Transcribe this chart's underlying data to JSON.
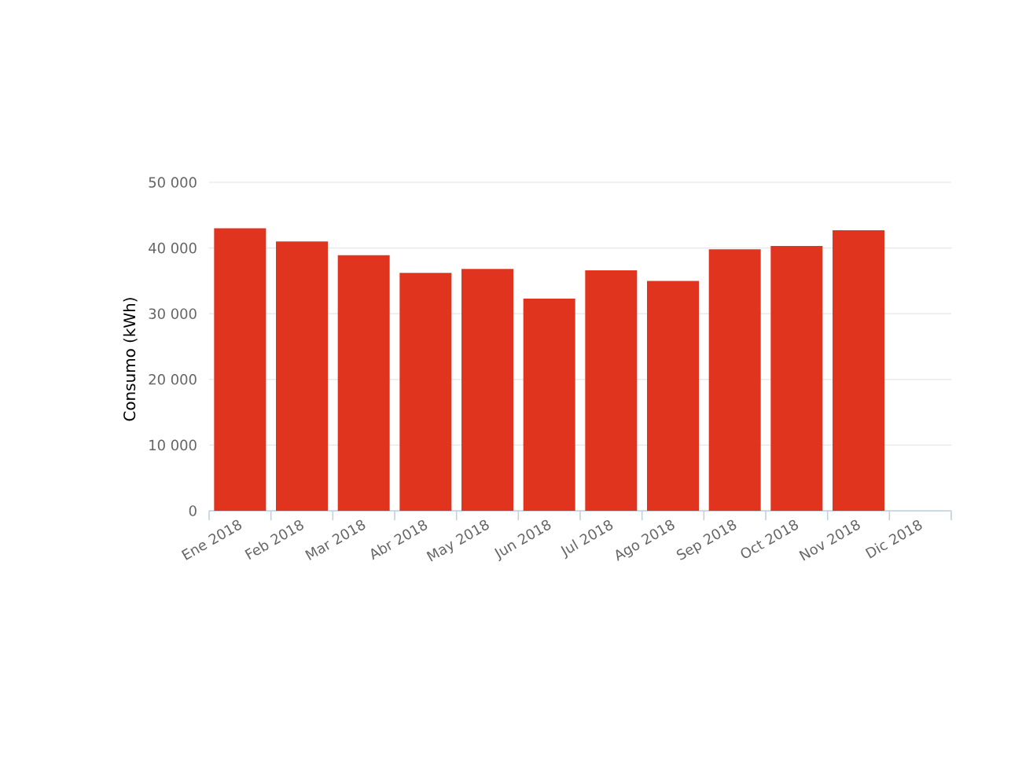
{
  "chart_data": {
    "type": "bar",
    "ylabel": "Consumo (kWh)",
    "categories": [
      "Ene 2018",
      "Feb 2018",
      "Mar 2018",
      "Abr 2018",
      "May 2018",
      "Jun 2018",
      "Jul 2018",
      "Ago 2018",
      "Sep 2018",
      "Oct 2018",
      "Nov 2018",
      "Dic 2018"
    ],
    "values": [
      43000,
      41000,
      38900,
      36200,
      36800,
      32300,
      36600,
      35000,
      39800,
      40300,
      42700,
      null
    ],
    "color": "#e0341f",
    "ylim": [
      0,
      50000
    ],
    "yticks": [
      {
        "value": 0,
        "label": "0"
      },
      {
        "value": 10000,
        "label": "10 000"
      },
      {
        "value": 20000,
        "label": "20 000"
      },
      {
        "value": 30000,
        "label": "30 000"
      },
      {
        "value": 40000,
        "label": "40 000"
      },
      {
        "value": 50000,
        "label": "50 000"
      }
    ],
    "grid": "y"
  }
}
